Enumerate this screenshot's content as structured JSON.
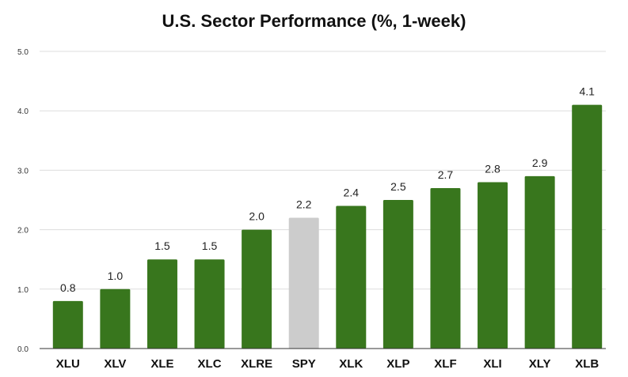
{
  "chart_data": {
    "type": "bar",
    "title": "U.S. Sector Performance (%, 1-week)",
    "categories": [
      "XLU",
      "XLV",
      "XLE",
      "XLC",
      "XLRE",
      "SPY",
      "XLK",
      "XLP",
      "XLF",
      "XLI",
      "XLY",
      "XLB"
    ],
    "values": [
      0.8,
      1.0,
      1.5,
      1.5,
      2.0,
      2.2,
      2.4,
      2.5,
      2.7,
      2.8,
      2.9,
      4.1
    ],
    "data_labels": [
      "0.8",
      "1.0",
      "1.5",
      "1.5",
      "2.0",
      "2.2",
      "2.4",
      "2.5",
      "2.7",
      "2.8",
      "2.9",
      "4.1"
    ],
    "ylim": [
      0,
      5
    ],
    "yticks": [
      0,
      1,
      2,
      3,
      4,
      5
    ],
    "ytick_labels": [
      "0.0",
      "1.0",
      "2.0",
      "3.0",
      "4.0",
      "5.0"
    ],
    "xlabel": "",
    "ylabel": "",
    "grid": true,
    "colors": {
      "bar": "#38761d",
      "highlight_bar": "#cccccc",
      "gridline": "#dddddd",
      "axis": "#333333"
    },
    "highlight_category": "SPY"
  }
}
